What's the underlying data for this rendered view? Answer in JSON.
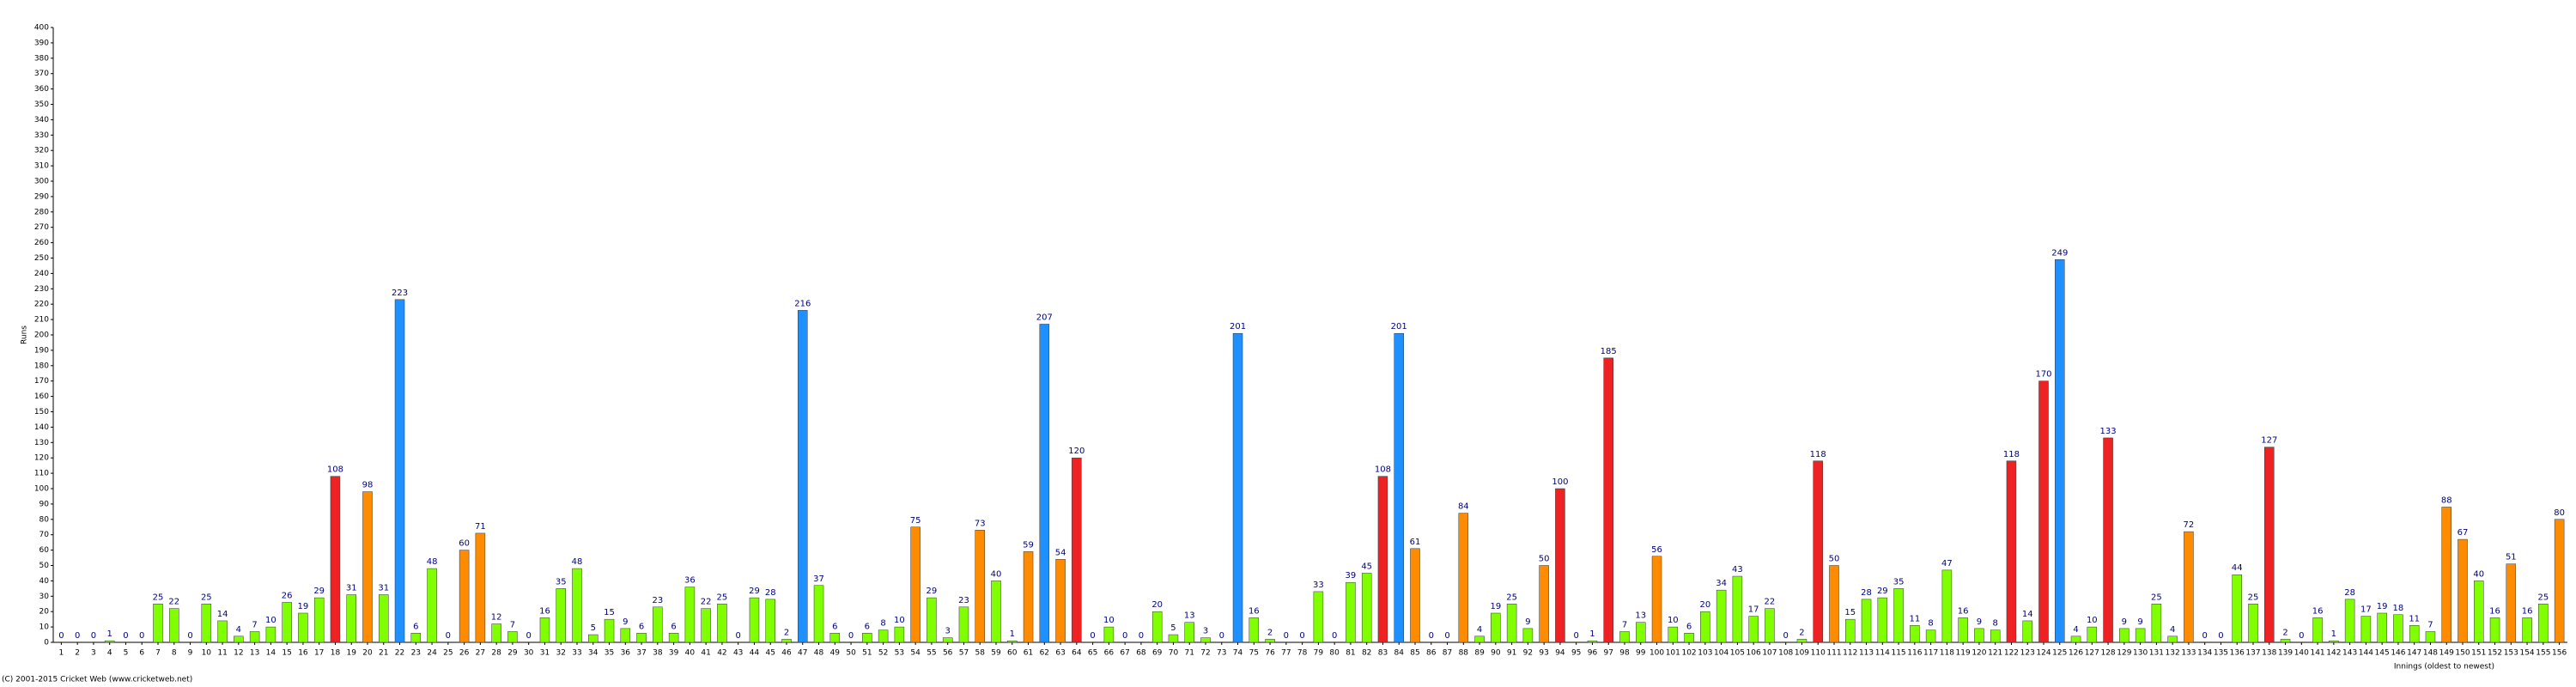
{
  "chart_data": {
    "type": "bar",
    "y_label": "Runs",
    "x_label": "Innings (oldest to newest)",
    "footer": "(C) 2001-2015 Cricket Web (www.cricketweb.net)",
    "categories": [
      1,
      2,
      3,
      4,
      5,
      6,
      7,
      8,
      9,
      10,
      11,
      12,
      13,
      14,
      15,
      16,
      17,
      18,
      19,
      20,
      21,
      22,
      23,
      24,
      25,
      26,
      27,
      28,
      29,
      30,
      31,
      32,
      33,
      34,
      35,
      36,
      37,
      38,
      39,
      40,
      41,
      42,
      43,
      44,
      45,
      46,
      47,
      48,
      49,
      50,
      51,
      52,
      53,
      54,
      55,
      56,
      57,
      58,
      59,
      60,
      61,
      62,
      63,
      64,
      65,
      66,
      67,
      68,
      69,
      70,
      71,
      72,
      73,
      74,
      75,
      76,
      77,
      78,
      79,
      80,
      81,
      82,
      83,
      84,
      85,
      86,
      87,
      88,
      89,
      90,
      91,
      92,
      93,
      94,
      95,
      96,
      97,
      98,
      99,
      100,
      101,
      102,
      103,
      104,
      105,
      106,
      107,
      108,
      109,
      110,
      111,
      112,
      113,
      114,
      115,
      116,
      117,
      118,
      119,
      120,
      121,
      122,
      123,
      124,
      125,
      126,
      127,
      128,
      129,
      130,
      131,
      132,
      133,
      134,
      135,
      136,
      137,
      138,
      139,
      140,
      141,
      142,
      143,
      144,
      145,
      146,
      147,
      148,
      149,
      150,
      151,
      152,
      153,
      154,
      155,
      156
    ],
    "values": [
      0,
      0,
      0,
      1,
      0,
      0,
      25,
      22,
      0,
      25,
      14,
      4,
      7,
      10,
      26,
      19,
      29,
      108,
      31,
      98,
      31,
      223,
      6,
      48,
      0,
      60,
      71,
      12,
      7,
      0,
      16,
      35,
      48,
      5,
      15,
      9,
      6,
      23,
      6,
      36,
      22,
      25,
      0,
      29,
      28,
      2,
      216,
      37,
      6,
      0,
      6,
      8,
      10,
      75,
      29,
      3,
      23,
      73,
      40,
      1,
      59,
      207,
      54,
      120,
      0,
      10,
      0,
      0,
      20,
      5,
      13,
      3,
      0,
      201,
      16,
      2,
      0,
      0,
      33,
      0,
      39,
      45,
      108,
      201,
      61,
      0,
      0,
      84,
      4,
      19,
      25,
      9,
      50,
      100,
      0,
      1,
      185,
      7,
      13,
      56,
      10,
      6,
      20,
      34,
      43,
      17,
      22,
      0,
      2,
      118,
      50,
      15,
      28,
      29,
      35,
      11,
      8,
      47,
      16,
      9,
      8,
      118,
      14,
      170,
      249,
      4,
      10,
      133,
      9,
      9,
      25,
      4,
      72,
      0,
      0,
      44,
      25,
      127,
      2,
      0,
      16,
      1,
      28,
      17,
      19,
      18,
      11,
      7,
      88,
      67,
      40,
      16,
      51,
      16,
      25,
      80
    ],
    "colors": [
      "#80ff00",
      "#80ff00",
      "#80ff00",
      "#80ff00",
      "#80ff00",
      "#80ff00",
      "#80ff00",
      "#80ff00",
      "#80ff00",
      "#80ff00",
      "#80ff00",
      "#80ff00",
      "#80ff00",
      "#80ff00",
      "#80ff00",
      "#80ff00",
      "#80ff00",
      "#ee2222",
      "#80ff00",
      "#ff8c00",
      "#80ff00",
      "#1e90ff",
      "#80ff00",
      "#80ff00",
      "#80ff00",
      "#ff8c00",
      "#ff8c00",
      "#80ff00",
      "#80ff00",
      "#80ff00",
      "#80ff00",
      "#80ff00",
      "#80ff00",
      "#80ff00",
      "#80ff00",
      "#80ff00",
      "#80ff00",
      "#80ff00",
      "#80ff00",
      "#80ff00",
      "#80ff00",
      "#80ff00",
      "#80ff00",
      "#80ff00",
      "#80ff00",
      "#80ff00",
      "#1e90ff",
      "#80ff00",
      "#80ff00",
      "#80ff00",
      "#80ff00",
      "#80ff00",
      "#80ff00",
      "#ff8c00",
      "#80ff00",
      "#80ff00",
      "#80ff00",
      "#ff8c00",
      "#80ff00",
      "#80ff00",
      "#ff8c00",
      "#1e90ff",
      "#ff8c00",
      "#ee2222",
      "#80ff00",
      "#80ff00",
      "#80ff00",
      "#80ff00",
      "#80ff00",
      "#80ff00",
      "#80ff00",
      "#80ff00",
      "#80ff00",
      "#1e90ff",
      "#80ff00",
      "#80ff00",
      "#80ff00",
      "#80ff00",
      "#80ff00",
      "#80ff00",
      "#80ff00",
      "#80ff00",
      "#ee2222",
      "#1e90ff",
      "#ff8c00",
      "#80ff00",
      "#80ff00",
      "#ff8c00",
      "#80ff00",
      "#80ff00",
      "#80ff00",
      "#80ff00",
      "#ff8c00",
      "#ee2222",
      "#80ff00",
      "#80ff00",
      "#ee2222",
      "#80ff00",
      "#80ff00",
      "#ff8c00",
      "#80ff00",
      "#80ff00",
      "#80ff00",
      "#80ff00",
      "#80ff00",
      "#80ff00",
      "#80ff00",
      "#80ff00",
      "#80ff00",
      "#ee2222",
      "#ff8c00",
      "#80ff00",
      "#80ff00",
      "#80ff00",
      "#80ff00",
      "#80ff00",
      "#80ff00",
      "#80ff00",
      "#80ff00",
      "#80ff00",
      "#80ff00",
      "#ee2222",
      "#80ff00",
      "#ee2222",
      "#1e90ff",
      "#80ff00",
      "#80ff00",
      "#ee2222",
      "#80ff00",
      "#80ff00",
      "#80ff00",
      "#80ff00",
      "#ff8c00",
      "#80ff00",
      "#80ff00",
      "#80ff00",
      "#80ff00",
      "#ee2222",
      "#80ff00",
      "#80ff00",
      "#80ff00",
      "#80ff00",
      "#80ff00",
      "#80ff00",
      "#80ff00",
      "#80ff00",
      "#80ff00",
      "#80ff00",
      "#ff8c00",
      "#ff8c00",
      "#80ff00",
      "#80ff00",
      "#ff8c00",
      "#80ff00",
      "#80ff00",
      "#ff8c00"
    ],
    "ylim": [
      0,
      400
    ],
    "yticks": [
      0,
      10,
      20,
      30,
      40,
      50,
      60,
      70,
      80,
      90,
      100,
      110,
      120,
      130,
      140,
      150,
      160,
      170,
      180,
      190,
      200,
      210,
      220,
      230,
      240,
      250,
      260,
      270,
      280,
      290,
      300,
      310,
      320,
      330,
      340,
      350,
      360,
      370,
      380,
      390,
      400
    ],
    "grid": false
  }
}
